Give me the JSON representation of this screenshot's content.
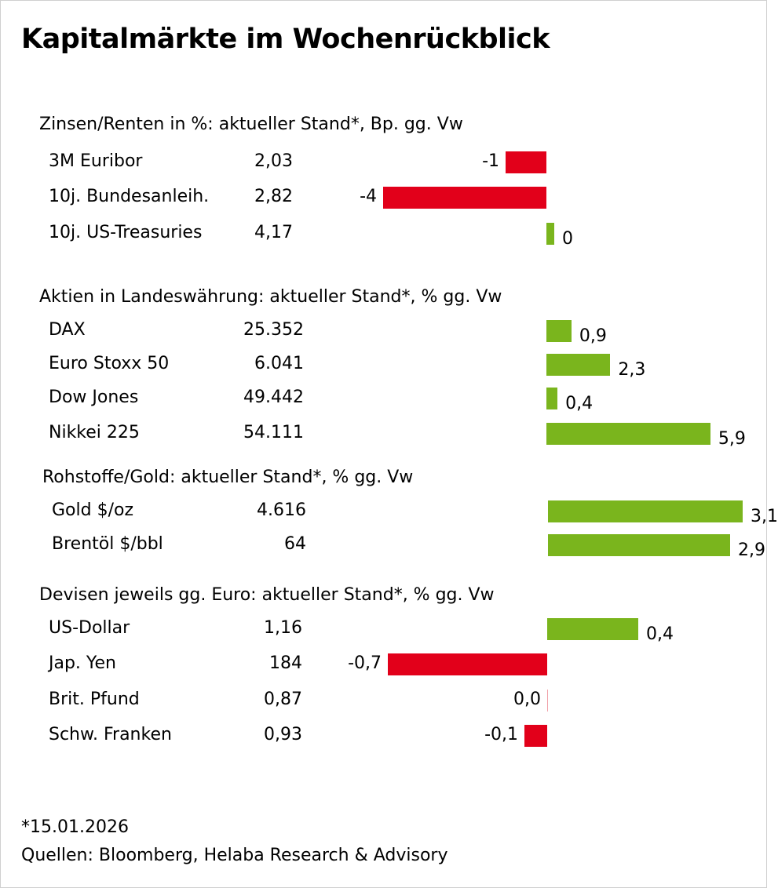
{
  "title": "Kapitalmärkte im Wochenrückblick",
  "colors": {
    "positive": "#7ab51d",
    "negative": "#e2001a"
  },
  "chart_data": {
    "type": "bar",
    "orientation": "horizontal",
    "sections": [
      {
        "title": "Zinsen/Renten in %: aktueller Stand*, Bp. gg. Vw",
        "rows": [
          {
            "name": "3M Euribor",
            "level": "2,03",
            "change": -1,
            "label": "-1"
          },
          {
            "name": "10j. Bundesanleih.",
            "level": "2,82",
            "change": -4,
            "label": "-4"
          },
          {
            "name": "10j. US-Treasuries",
            "level": "4,17",
            "change": 0,
            "label": "0"
          }
        ]
      },
      {
        "title": "Aktien in Landeswährung: aktueller Stand*, % gg. Vw",
        "rows": [
          {
            "name": "DAX",
            "level": "25.352",
            "change": 0.9,
            "label": "0,9"
          },
          {
            "name": "Euro Stoxx 50",
            "level": "6.041",
            "change": 2.3,
            "label": "2,3"
          },
          {
            "name": "Dow Jones",
            "level": "49.442",
            "change": 0.4,
            "label": "0,4"
          },
          {
            "name": "Nikkei 225",
            "level": "54.111",
            "change": 5.9,
            "label": "5,9"
          }
        ]
      },
      {
        "title": "Rohstoffe/Gold: aktueller Stand*, % gg. Vw",
        "rows": [
          {
            "name": "Gold $/oz",
            "level": "4.616",
            "change": 3.1,
            "label": "3,1"
          },
          {
            "name": "Brentöl $/bbl",
            "level": "64",
            "change": 2.9,
            "label": "2,9"
          }
        ]
      },
      {
        "title": "Devisen jeweils gg. Euro: aktueller Stand*, % gg. Vw",
        "rows": [
          {
            "name": "US-Dollar",
            "level": "1,16",
            "change": 0.4,
            "label": "0,4"
          },
          {
            "name": "Jap. Yen",
            "level": "184",
            "change": -0.7,
            "label": "-0,7"
          },
          {
            "name": "Brit. Pfund",
            "level": "0,87",
            "change": 0.0,
            "label": "0,0"
          },
          {
            "name": "Schw. Franken",
            "level": "0,93",
            "change": -0.1,
            "label": "-0,1"
          }
        ]
      }
    ]
  },
  "footnote": "*15.01.2026",
  "source": "Quellen: Bloomberg, Helaba Research & Advisory"
}
